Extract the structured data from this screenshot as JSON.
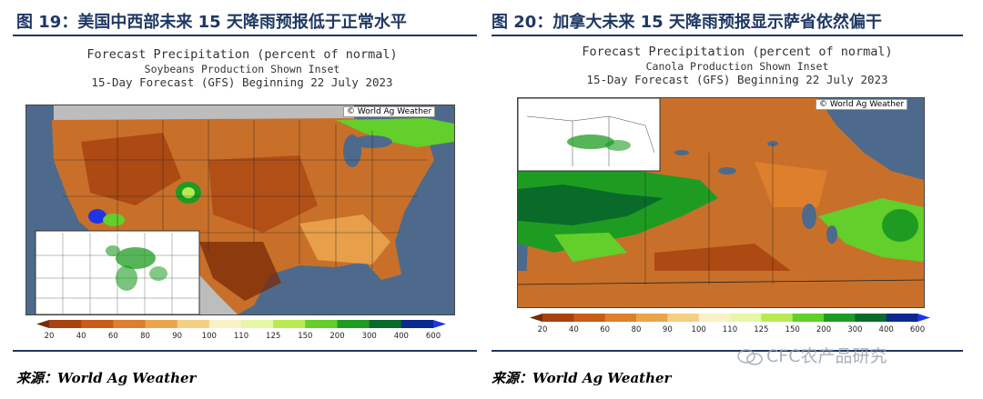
{
  "panels": [
    {
      "figure_title": "图 19：美国中西部未来 15 天降雨预报低于正常水平",
      "map_title": "Forecast Precipitation (percent of normal)",
      "map_subtitle": "Soybeans Production Shown Inset",
      "map_forecast": "15-Day Forecast (GFS) Beginning 22 July 2023",
      "credit": "© World Ag Weather",
      "source": "来源：World Ag Weather"
    },
    {
      "figure_title": "图 20：加拿大未来 15 天降雨预报显示萨省依然偏干",
      "map_title": "Forecast Precipitation (percent of normal)",
      "map_subtitle": "Canola Production Shown Inset",
      "map_forecast": "15-Day Forecast (GFS) Beginning 22 July 2023",
      "credit": "© World Ag Weather",
      "source": "来源：World Ag Weather"
    }
  ],
  "watermark": "CFC农产品研究",
  "chart_data": [
    {
      "type": "heatmap",
      "title": "Forecast Precipitation (percent of normal)",
      "subtitle": "Soybeans Production Shown Inset",
      "forecast": "15-Day Forecast (GFS) Beginning 22 July 2023",
      "region": "United States",
      "legend": {
        "ticks": [
          "20",
          "40",
          "60",
          "80",
          "90",
          "100",
          "110",
          "125",
          "150",
          "200",
          "300",
          "400",
          "600"
        ],
        "colors": [
          "#7a2a06",
          "#a8420f",
          "#c85c18",
          "#dd7f2c",
          "#eaa44c",
          "#f4cf84",
          "#fbf1c6",
          "#e6f7a6",
          "#b8ea52",
          "#62cf2a",
          "#1e9c22",
          "#0a6a2a",
          "#0a2a8f",
          "#1e34e6"
        ]
      }
    },
    {
      "type": "heatmap",
      "title": "Forecast Precipitation (percent of normal)",
      "subtitle": "Canola Production Shown Inset",
      "forecast": "15-Day Forecast (GFS) Beginning 22 July 2023",
      "region": "Canada",
      "legend": {
        "ticks": [
          "20",
          "40",
          "60",
          "80",
          "90",
          "100",
          "110",
          "125",
          "150",
          "200",
          "300",
          "400",
          "600"
        ],
        "colors": [
          "#7a2a06",
          "#a8420f",
          "#c85c18",
          "#dd7f2c",
          "#eaa44c",
          "#f4cf84",
          "#fbf1c6",
          "#e6f7a6",
          "#b8ea52",
          "#62cf2a",
          "#1e9c22",
          "#0a6a2a",
          "#0a2a8f",
          "#1e34e6"
        ]
      }
    }
  ]
}
